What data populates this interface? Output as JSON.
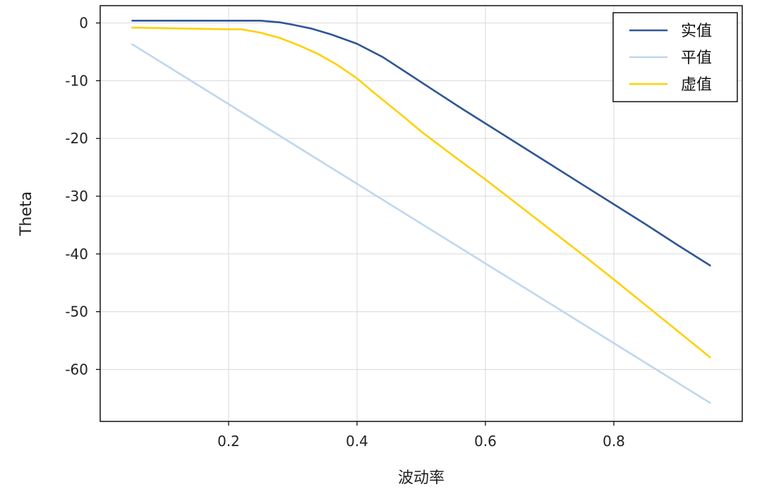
{
  "chart_data": {
    "type": "line",
    "title": "",
    "xlabel": "波动率",
    "ylabel": "Theta",
    "xlim": [
      0.0,
      1.0
    ],
    "ylim": [
      -69,
      3
    ],
    "xticks": [
      0.2,
      0.4,
      0.6,
      0.8
    ],
    "xtick_labels": [
      "0.2",
      "0.4",
      "0.6",
      "0.8"
    ],
    "yticks": [
      0,
      -10,
      -20,
      -30,
      -40,
      -50,
      -60
    ],
    "ytick_labels": [
      "0",
      "-10",
      "-20",
      "-30",
      "-40",
      "-50",
      "-60"
    ],
    "grid": true,
    "legend_position": "top-right",
    "series": [
      {
        "name": "实值",
        "color": "#2f5597",
        "x": [
          0.05,
          0.1,
          0.15,
          0.2,
          0.25,
          0.28,
          0.3,
          0.33,
          0.36,
          0.4,
          0.44,
          0.48,
          0.52,
          0.56,
          0.6,
          0.65,
          0.7,
          0.75,
          0.8,
          0.85,
          0.9,
          0.95
        ],
        "y": [
          0.4,
          0.4,
          0.4,
          0.4,
          0.4,
          0.1,
          -0.3,
          -1.0,
          -2.0,
          -3.6,
          -5.9,
          -8.8,
          -11.7,
          -14.6,
          -17.4,
          -20.9,
          -24.4,
          -27.9,
          -31.4,
          -34.9,
          -38.5,
          -42.0
        ]
      },
      {
        "name": "平值",
        "color": "#bdd7ee",
        "x": [
          0.05,
          0.95
        ],
        "y": [
          -3.7,
          -65.8
        ]
      },
      {
        "name": "虚值",
        "color": "#ffd000",
        "x": [
          0.05,
          0.1,
          0.15,
          0.2,
          0.22,
          0.25,
          0.28,
          0.31,
          0.34,
          0.37,
          0.4,
          0.43,
          0.47,
          0.5,
          0.55,
          0.6,
          0.65,
          0.7,
          0.75,
          0.8,
          0.85,
          0.9,
          0.95
        ],
        "y": [
          -0.8,
          -0.9,
          -1.0,
          -1.1,
          -1.1,
          -1.7,
          -2.6,
          -3.9,
          -5.4,
          -7.3,
          -9.6,
          -12.4,
          -16.0,
          -18.8,
          -23.0,
          -27.1,
          -31.4,
          -35.7,
          -40.0,
          -44.4,
          -48.9,
          -53.4,
          -57.9
        ]
      }
    ]
  }
}
